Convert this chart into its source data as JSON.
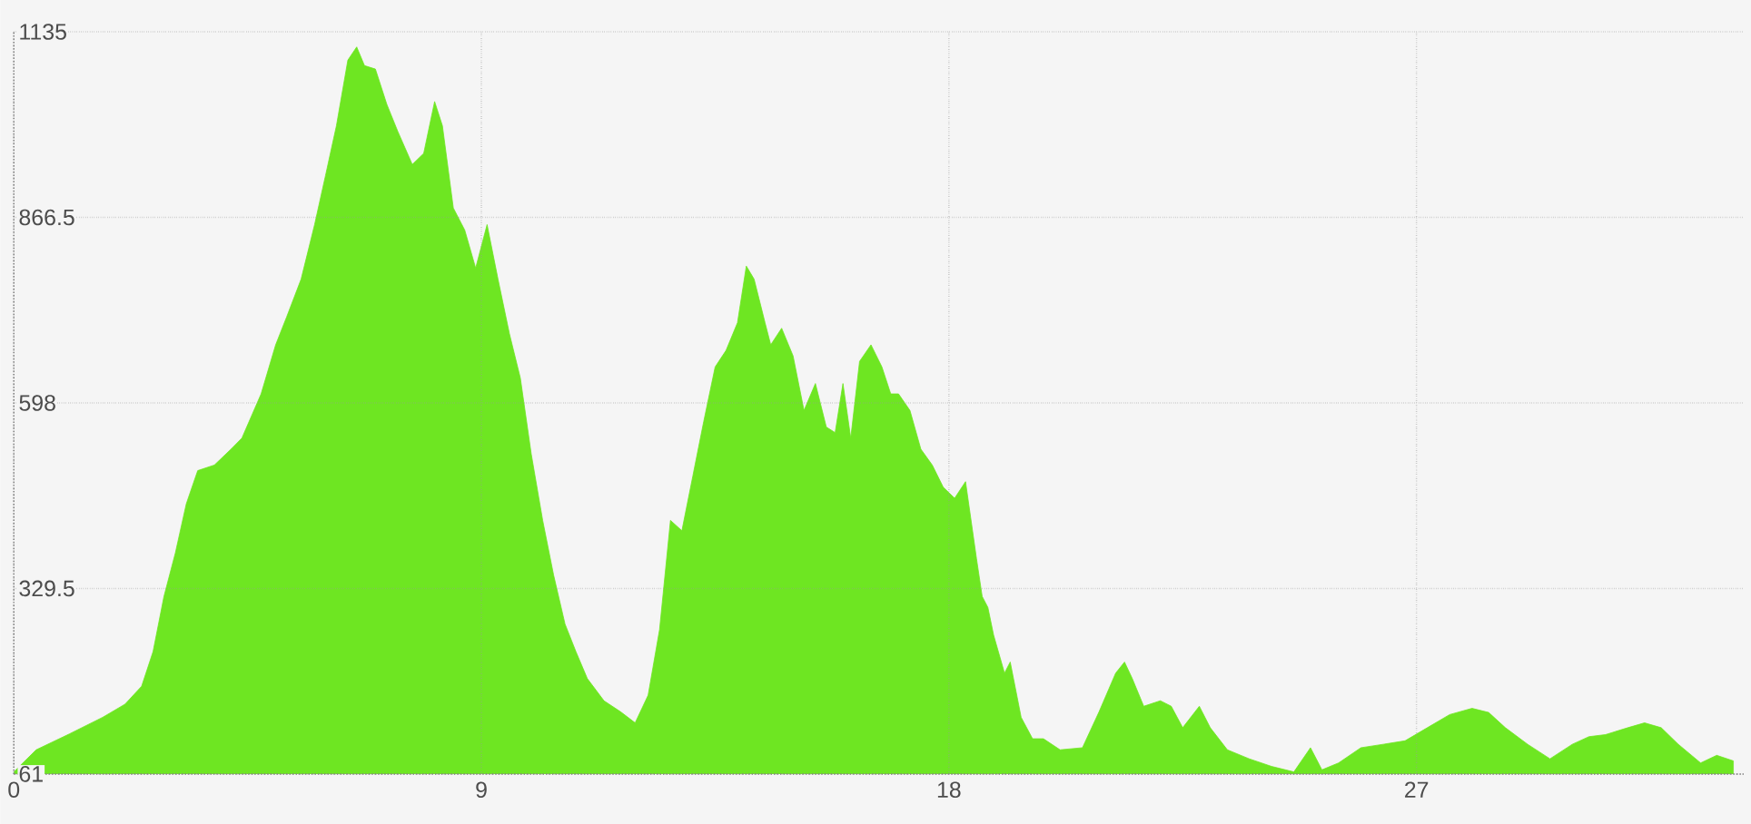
{
  "chart_data": {
    "type": "area",
    "xlim": [
      0,
      33.3
    ],
    "ylim": [
      61,
      1135
    ],
    "xticks": [
      0,
      9,
      18,
      27
    ],
    "yticks": [
      61,
      329.5,
      598,
      866.5,
      1135
    ],
    "grid": true,
    "series": [
      {
        "color": "#6ee622",
        "x": [
          0,
          0.43,
          1.07,
          1.71,
          2.14,
          2.46,
          2.68,
          2.89,
          3.11,
          3.32,
          3.54,
          3.86,
          4.18,
          4.39,
          4.76,
          5.04,
          5.25,
          5.53,
          5.79,
          6.0,
          6.21,
          6.43,
          6.6,
          6.75,
          6.96,
          7.18,
          7.39,
          7.67,
          7.89,
          8.1,
          8.25,
          8.46,
          8.68,
          8.89,
          9.11,
          9.32,
          9.54,
          9.75,
          9.96,
          10.18,
          10.39,
          10.61,
          10.82,
          11.04,
          11.36,
          11.68,
          11.96,
          12.21,
          12.43,
          12.64,
          12.86,
          13.07,
          13.28,
          13.5,
          13.71,
          13.93,
          14.1,
          14.25,
          14.46,
          14.57,
          14.78,
          15.0,
          15.21,
          15.43,
          15.64,
          15.81,
          15.96,
          16.11,
          16.28,
          16.5,
          16.71,
          16.88,
          17.03,
          17.25,
          17.46,
          17.68,
          17.89,
          18.11,
          18.32,
          18.53,
          18.64,
          18.75,
          18.86,
          19.07,
          19.18,
          19.39,
          19.61,
          19.82,
          20.14,
          20.57,
          20.89,
          21.21,
          21.38,
          21.53,
          21.75,
          22.07,
          22.28,
          22.5,
          22.82,
          23.03,
          23.36,
          23.78,
          24.21,
          24.64,
          24.96,
          25.18,
          25.5,
          25.93,
          26.36,
          26.78,
          27.21,
          27.64,
          28.07,
          28.39,
          28.71,
          29.14,
          29.57,
          30.0,
          30.32,
          30.64,
          31.07,
          31.39,
          31.71,
          32.04,
          32.47,
          32.78,
          33.1
        ],
        "values": [
          64,
          96,
          119,
          143,
          162,
          188,
          238,
          318,
          381,
          452,
          500,
          508,
          531,
          547,
          611,
          682,
          722,
          777,
          856,
          927,
          999,
          1094,
          1113,
          1086,
          1081,
          1030,
          991,
          943,
          959,
          1034,
          999,
          880,
          848,
          793,
          856,
          777,
          698,
          634,
          524,
          428,
          349,
          278,
          238,
          199,
          167,
          151,
          135,
          175,
          270,
          428,
          413,
          492,
          571,
          650,
          674,
          714,
          796,
          777,
          714,
          682,
          706,
          666,
          587,
          626,
          563,
          555,
          626,
          547,
          658,
          682,
          650,
          611,
          611,
          587,
          531,
          508,
          476,
          460,
          484,
          373,
          318,
          302,
          262,
          207,
          223,
          143,
          112,
          112,
          96,
          99,
          151,
          207,
          223,
          199,
          159,
          167,
          159,
          128,
          159,
          128,
          96,
          83,
          72,
          64,
          99,
          67,
          77,
          99,
          104,
          109,
          128,
          147,
          156,
          150,
          128,
          104,
          83,
          104,
          115,
          118,
          128,
          135,
          128,
          104,
          77,
          88,
          80
        ]
      }
    ]
  }
}
